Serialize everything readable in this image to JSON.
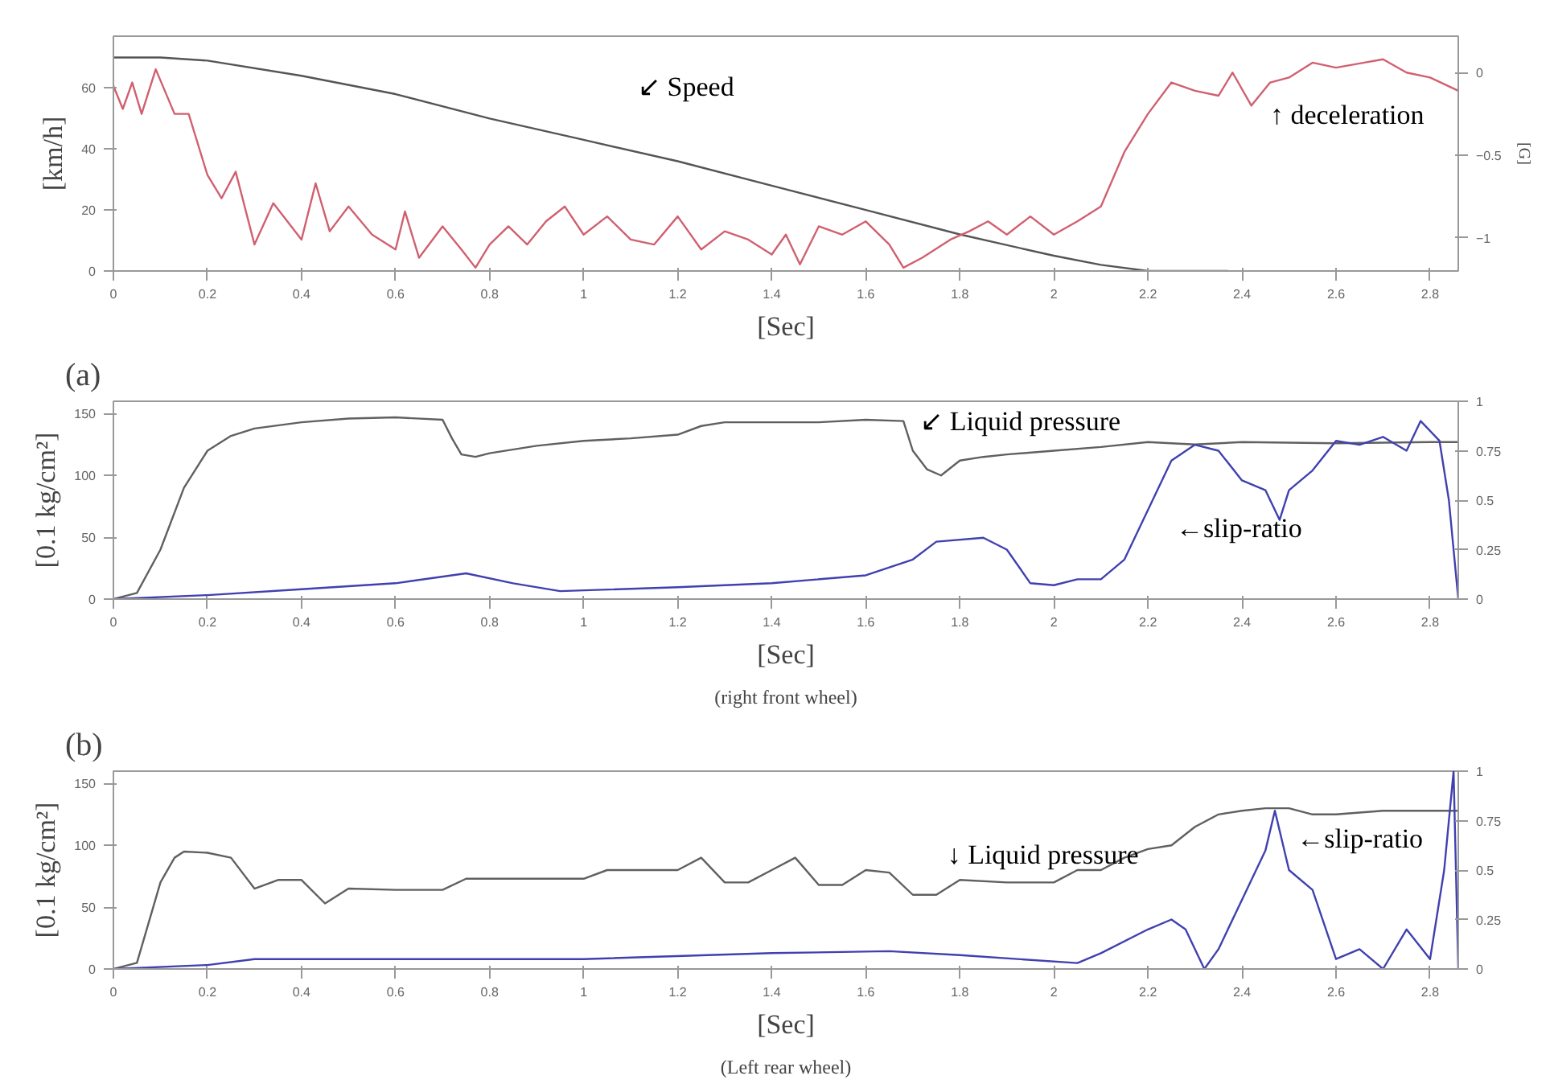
{
  "chart_data": [
    {
      "type": "line",
      "xlabel": "[Sec]",
      "ylabel": "[km/h]",
      "y2label": "[G]",
      "xlim": [
        0,
        2.86
      ],
      "ylim": [
        0,
        77
      ],
      "y2lim": [
        -1.2,
        0.22
      ],
      "xticks": [
        0,
        0.2,
        0.4,
        0.6,
        0.8,
        1,
        1.2,
        1.4,
        1.6,
        1.8,
        2,
        2.2,
        2.4,
        2.6,
        2.8
      ],
      "yticks": [
        0,
        20,
        40,
        60
      ],
      "y2ticks": [
        0,
        -0.5,
        -1
      ],
      "grid": false,
      "series": [
        {
          "color": "#555555",
          "x": [
            0,
            0.1,
            0.2,
            0.4,
            0.6,
            0.8,
            1.0,
            1.2,
            1.4,
            1.6,
            1.8,
            2.0,
            2.1,
            2.2,
            2.37
          ],
          "values": [
            70,
            70,
            69,
            64,
            58,
            50,
            43,
            36,
            28,
            20,
            12,
            5,
            2,
            0,
            0
          ]
        },
        {
          "color": "#d06070",
          "axis": "y2",
          "x": [
            0,
            0.02,
            0.04,
            0.06,
            0.09,
            0.13,
            0.16,
            0.2,
            0.23,
            0.26,
            0.3,
            0.34,
            0.4,
            0.43,
            0.46,
            0.5,
            0.55,
            0.6,
            0.62,
            0.65,
            0.7,
            0.74,
            0.77,
            0.8,
            0.84,
            0.88,
            0.92,
            0.96,
            1.0,
            1.05,
            1.1,
            1.15,
            1.2,
            1.25,
            1.3,
            1.35,
            1.4,
            1.43,
            1.46,
            1.5,
            1.55,
            1.6,
            1.65,
            1.68,
            1.72,
            1.78,
            1.82,
            1.86,
            1.9,
            1.95,
            2.0,
            2.05,
            2.1,
            2.15,
            2.2,
            2.25,
            2.3,
            2.35,
            2.38,
            2.42,
            2.46,
            2.5,
            2.55,
            2.6,
            2.66,
            2.7,
            2.75,
            2.8,
            2.86
          ],
          "values": [
            -0.08,
            -0.22,
            -0.06,
            -0.25,
            0.02,
            -0.25,
            -0.25,
            -0.62,
            -0.76,
            -0.6,
            -1.04,
            -0.79,
            -1.01,
            -0.67,
            -0.96,
            -0.81,
            -0.98,
            -1.07,
            -0.84,
            -1.12,
            -0.93,
            -1.07,
            -1.18,
            -1.04,
            -0.93,
            -1.04,
            -0.9,
            -0.81,
            -0.98,
            -0.87,
            -1.01,
            -1.04,
            -0.87,
            -1.07,
            -0.96,
            -1.01,
            -1.1,
            -0.98,
            -1.16,
            -0.93,
            -0.98,
            -0.9,
            -1.04,
            -1.18,
            -1.12,
            -1.01,
            -0.96,
            -0.9,
            -0.98,
            -0.87,
            -0.98,
            -0.9,
            -0.81,
            -0.48,
            -0.25,
            -0.06,
            -0.11,
            -0.14,
            0.0,
            -0.2,
            -0.06,
            -0.03,
            0.06,
            0.03,
            0.06,
            0.08,
            0.0,
            -0.03,
            -0.11
          ]
        }
      ],
      "annotations": [
        "↙ Speed",
        "↑ deceleration"
      ]
    },
    {
      "type": "line",
      "title": "(a)",
      "xlabel": "[Sec]",
      "ylabel": "[0.1 kg/cm²]",
      "xlim": [
        0,
        2.86
      ],
      "ylim": [
        0,
        160
      ],
      "y2lim": [
        0,
        1
      ],
      "xticks": [
        0,
        0.2,
        0.4,
        0.6,
        0.8,
        1,
        1.2,
        1.4,
        1.6,
        1.8,
        2,
        2.2,
        2.4,
        2.6,
        2.8
      ],
      "yticks": [
        0,
        50,
        100,
        150
      ],
      "y2ticks": [
        0,
        0.25,
        0.5,
        0.75,
        1
      ],
      "grid": false,
      "series": [
        {
          "color": "#606060",
          "x": [
            0,
            0.05,
            0.1,
            0.15,
            0.2,
            0.25,
            0.3,
            0.4,
            0.5,
            0.6,
            0.7,
            0.72,
            0.74,
            0.77,
            0.8,
            0.9,
            1.0,
            1.1,
            1.2,
            1.25,
            1.3,
            1.4,
            1.5,
            1.6,
            1.68,
            1.7,
            1.73,
            1.76,
            1.8,
            1.85,
            1.9,
            2.0,
            2.1,
            2.2,
            2.3,
            2.4,
            2.6,
            2.8,
            2.86
          ],
          "values": [
            0,
            5,
            40,
            90,
            120,
            132,
            138,
            143,
            146,
            147,
            145,
            130,
            117,
            115,
            118,
            124,
            128,
            130,
            133,
            140,
            143,
            143,
            143,
            145,
            144,
            120,
            105,
            100,
            112,
            115,
            117,
            120,
            123,
            127,
            125,
            127,
            126,
            127,
            127
          ]
        },
        {
          "color": "#4040b0",
          "axis": "y2",
          "x": [
            0,
            0.2,
            0.4,
            0.6,
            0.75,
            0.85,
            0.95,
            1.2,
            1.4,
            1.6,
            1.7,
            1.75,
            1.85,
            1.9,
            1.95,
            2.0,
            2.05,
            2.1,
            2.15,
            2.2,
            2.25,
            2.3,
            2.35,
            2.4,
            2.45,
            2.48,
            2.5,
            2.55,
            2.6,
            2.65,
            2.7,
            2.75,
            2.78,
            2.82,
            2.84,
            2.86
          ],
          "values": [
            0,
            0.02,
            0.05,
            0.08,
            0.13,
            0.08,
            0.04,
            0.06,
            0.08,
            0.12,
            0.2,
            0.29,
            0.31,
            0.25,
            0.08,
            0.07,
            0.1,
            0.1,
            0.2,
            0.45,
            0.7,
            0.78,
            0.75,
            0.6,
            0.55,
            0.4,
            0.55,
            0.65,
            0.8,
            0.78,
            0.82,
            0.75,
            0.9,
            0.8,
            0.5,
            0
          ]
        }
      ],
      "annotations": [
        "↙ Liquid pressure",
        "←slip-ratio",
        "(right front wheel)"
      ]
    },
    {
      "type": "line",
      "title": "(b)",
      "xlabel": "[Sec]",
      "ylabel": "[0.1 kg/cm²]",
      "xlim": [
        0,
        2.86
      ],
      "ylim": [
        0,
        160
      ],
      "y2lim": [
        0,
        1
      ],
      "xticks": [
        0,
        0.2,
        0.4,
        0.6,
        0.8,
        1,
        1.2,
        1.4,
        1.6,
        1.8,
        2,
        2.2,
        2.4,
        2.6,
        2.8
      ],
      "yticks": [
        0,
        50,
        100,
        150
      ],
      "y2ticks": [
        0,
        0.25,
        0.5,
        0.75,
        1
      ],
      "grid": false,
      "series": [
        {
          "color": "#606060",
          "x": [
            0,
            0.05,
            0.1,
            0.13,
            0.15,
            0.2,
            0.25,
            0.3,
            0.35,
            0.4,
            0.45,
            0.5,
            0.6,
            0.7,
            0.75,
            0.9,
            1.0,
            1.05,
            1.15,
            1.2,
            1.25,
            1.3,
            1.35,
            1.4,
            1.45,
            1.5,
            1.55,
            1.6,
            1.65,
            1.7,
            1.75,
            1.8,
            1.9,
            2.0,
            2.05,
            2.1,
            2.15,
            2.2,
            2.25,
            2.3,
            2.35,
            2.4,
            2.45,
            2.5,
            2.55,
            2.6,
            2.7,
            2.86
          ],
          "values": [
            0,
            5,
            70,
            90,
            95,
            94,
            90,
            65,
            72,
            72,
            53,
            65,
            64,
            64,
            73,
            73,
            73,
            80,
            80,
            80,
            90,
            70,
            70,
            80,
            90,
            68,
            68,
            80,
            78,
            60,
            60,
            72,
            70,
            70,
            80,
            80,
            90,
            97,
            100,
            115,
            125,
            128,
            130,
            130,
            125,
            125,
            128,
            128
          ]
        },
        {
          "color": "#4040b0",
          "axis": "y2",
          "x": [
            0,
            0.2,
            0.3,
            1.0,
            1.4,
            1.65,
            1.8,
            2.05,
            2.1,
            2.2,
            2.25,
            2.28,
            2.32,
            2.35,
            2.4,
            2.45,
            2.47,
            2.5,
            2.55,
            2.6,
            2.65,
            2.7,
            2.75,
            2.8,
            2.83,
            2.85,
            2.86
          ],
          "values": [
            0,
            0.02,
            0.05,
            0.05,
            0.08,
            0.09,
            0.07,
            0.03,
            0.08,
            0.2,
            0.25,
            0.2,
            0.0,
            0.1,
            0.35,
            0.6,
            0.8,
            0.5,
            0.4,
            0.05,
            0.1,
            0.0,
            0.2,
            0.05,
            0.5,
            1.0,
            0
          ]
        }
      ],
      "annotations": [
        "↓ Liquid pressure",
        "←slip-ratio",
        "(Left rear wheel)"
      ]
    }
  ]
}
